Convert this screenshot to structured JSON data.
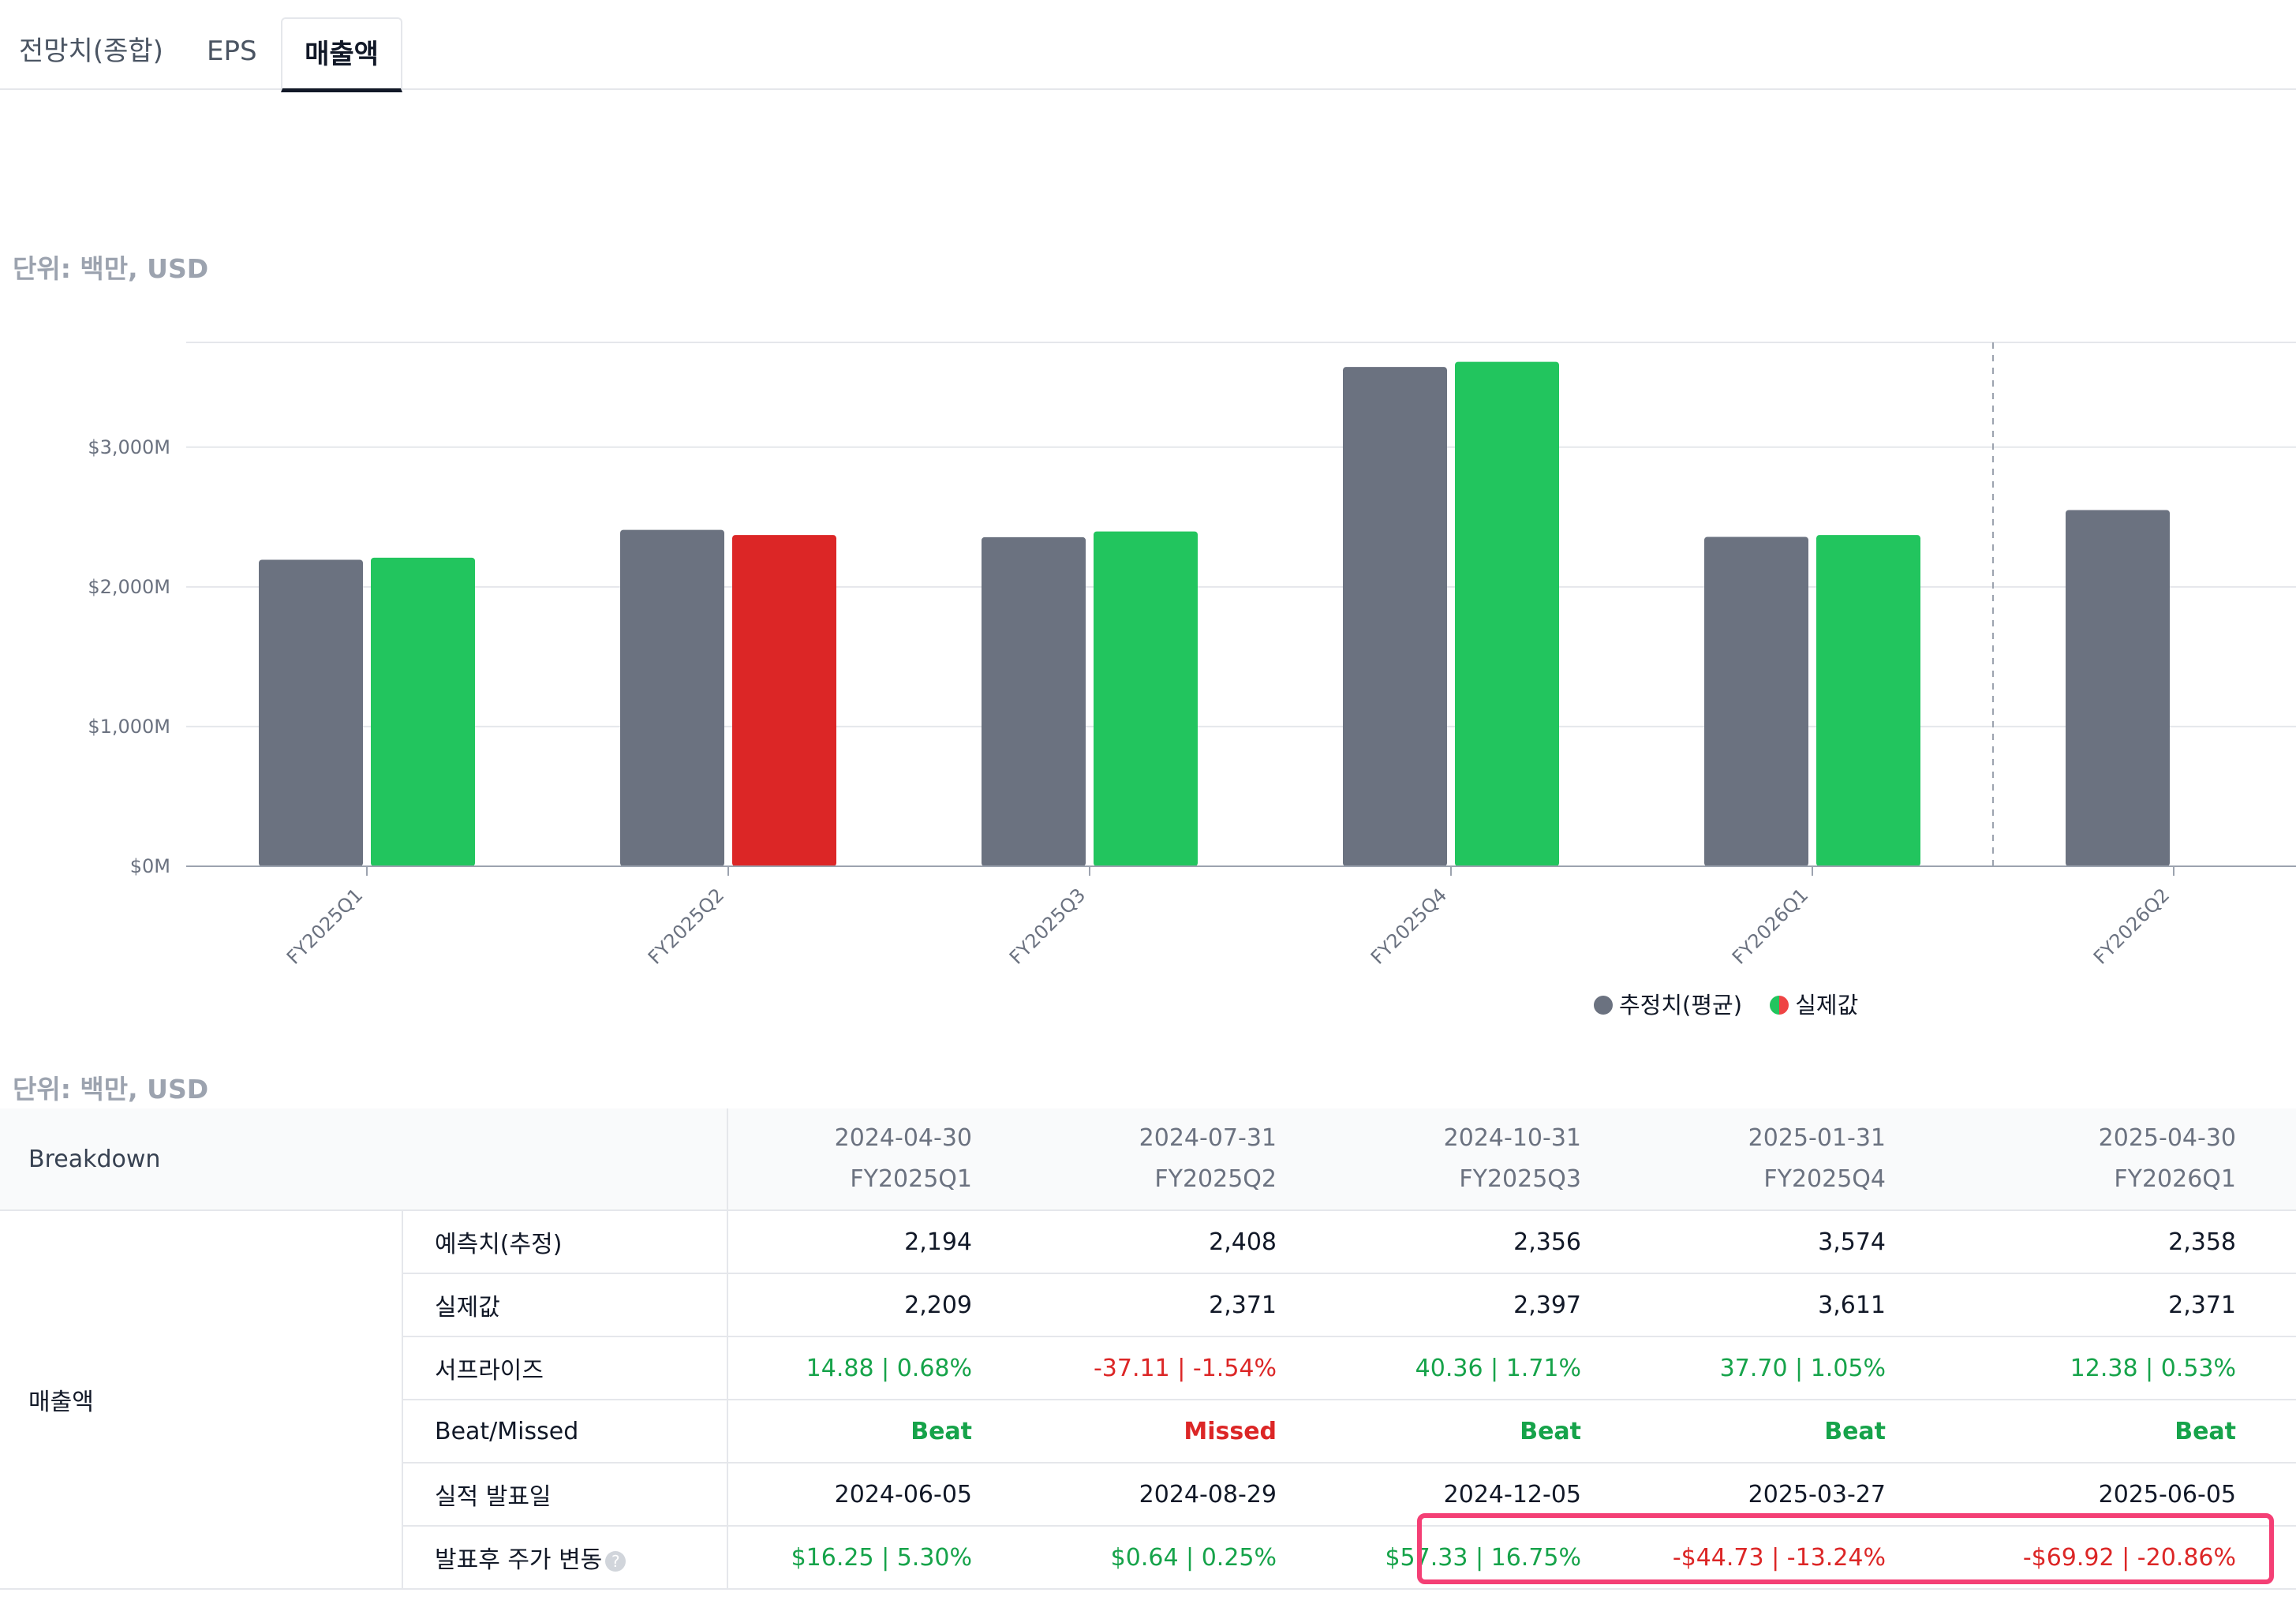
{
  "tabs": [
    {
      "label": "전망치(종합)",
      "active": false
    },
    {
      "label": "EPS",
      "active": false
    },
    {
      "label": "매출액",
      "active": true
    }
  ],
  "unit_label": "단위: 백만, USD",
  "chart_data": {
    "type": "bar",
    "categories": [
      "FY2025Q1",
      "FY2025Q2",
      "FY2025Q3",
      "FY2025Q4",
      "FY2026Q1",
      "FY2026Q2"
    ],
    "series": [
      {
        "name": "추정치(평균)",
        "values": [
          2194,
          2408,
          2356,
          3574,
          2358,
          2550
        ],
        "color": "#6b7280"
      },
      {
        "name": "실제값",
        "values": [
          2209,
          2371,
          2397,
          3611,
          2371,
          null
        ],
        "colors": [
          "#22c55e",
          "#dc2626",
          "#22c55e",
          "#22c55e",
          "#22c55e",
          null
        ]
      }
    ],
    "y_ticks": [
      "$0M",
      "$1,000M",
      "$2,000M",
      "$3,000M"
    ],
    "y_tick_values": [
      0,
      1000,
      2000,
      3000
    ],
    "ylim": [
      0,
      3750
    ],
    "grid": true,
    "forecast_divider_after": "FY2026Q1",
    "legend_position": "bottom-right"
  },
  "legend": {
    "estimate": "추정치(평균)",
    "actual": "실제값"
  },
  "table": {
    "breakdown_label": "Breakdown",
    "group_label": "매출액",
    "columns": [
      {
        "date": "2024-04-30",
        "period": "FY2025Q1"
      },
      {
        "date": "2024-07-31",
        "period": "FY2025Q2"
      },
      {
        "date": "2024-10-31",
        "period": "FY2025Q3"
      },
      {
        "date": "2025-01-31",
        "period": "FY2025Q4"
      },
      {
        "date": "2025-04-30",
        "period": "FY2026Q1"
      }
    ],
    "rows": [
      {
        "label": "예측치(추정)",
        "values": [
          "2,194",
          "2,408",
          "2,356",
          "3,574",
          "2,358"
        ],
        "tone": [
          "",
          "",
          "",
          "",
          ""
        ]
      },
      {
        "label": "실제값",
        "values": [
          "2,209",
          "2,371",
          "2,397",
          "3,611",
          "2,371"
        ],
        "tone": [
          "",
          "",
          "",
          "",
          ""
        ]
      },
      {
        "label": "서프라이즈",
        "values": [
          "14.88 | 0.68%",
          "-37.11 | -1.54%",
          "40.36 | 1.71%",
          "37.70 | 1.05%",
          "12.38 | 0.53%"
        ],
        "tone": [
          "pos",
          "neg",
          "pos",
          "pos",
          "pos"
        ]
      },
      {
        "label": "Beat/Missed",
        "values": [
          "Beat",
          "Missed",
          "Beat",
          "Beat",
          "Beat"
        ],
        "tone": [
          "pos bold",
          "neg bold",
          "pos bold",
          "pos bold",
          "pos bold"
        ]
      },
      {
        "label": "실적 발표일",
        "values": [
          "2024-06-05",
          "2024-08-29",
          "2024-12-05",
          "2025-03-27",
          "2025-06-05"
        ],
        "tone": [
          "",
          "",
          "",
          "",
          ""
        ]
      },
      {
        "label": "발표후 주가 변동",
        "help": "?",
        "values": [
          "$16.25 | 5.30%",
          "$0.64 | 0.25%",
          "$57.33 | 16.75%",
          "-$44.73 | -13.24%",
          "-$69.92 | -20.86%"
        ],
        "tone": [
          "pos",
          "pos",
          "pos",
          "neg",
          "neg"
        ]
      }
    ]
  }
}
